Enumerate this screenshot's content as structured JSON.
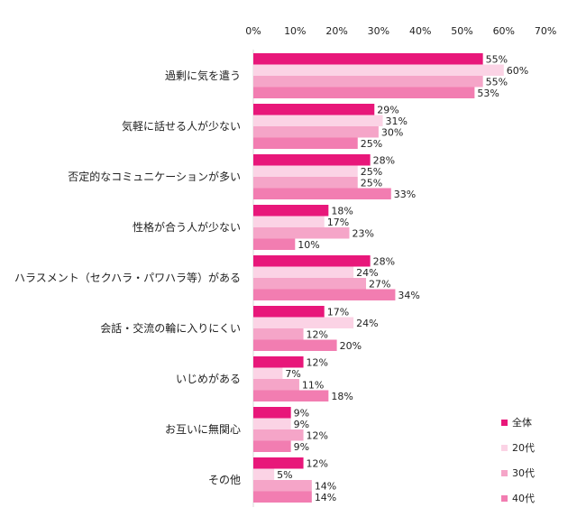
{
  "chart_data": {
    "type": "bar",
    "orientation": "horizontal",
    "xlim": [
      0,
      70
    ],
    "x_ticks": [
      "0%",
      "10%",
      "20%",
      "30%",
      "40%",
      "50%",
      "60%",
      "70%"
    ],
    "x_tick_values": [
      0,
      10,
      20,
      30,
      40,
      50,
      60,
      70
    ],
    "grid": false,
    "legend_placement": "bottom-right",
    "categories": [
      "過剰に気を遣う",
      "気軽に話せる人が少ない",
      "否定的なコミュニケーションが多い",
      "性格が合う人が少ない",
      "ハラスメント（セクハラ・パワハラ等）がある",
      "会話・交流の輪に入りにくい",
      "いじめがある",
      "お互いに無関心",
      "その他"
    ],
    "series": [
      {
        "name": "全体",
        "color": "#e8177a",
        "values": [
          55,
          29,
          28,
          18,
          28,
          17,
          12,
          9,
          12
        ]
      },
      {
        "name": "20代",
        "color": "#fbd3e5",
        "values": [
          60,
          31,
          25,
          17,
          24,
          24,
          7,
          9,
          5
        ]
      },
      {
        "name": "30代",
        "color": "#f5a5c8",
        "values": [
          55,
          30,
          25,
          23,
          27,
          12,
          11,
          12,
          14
        ]
      },
      {
        "name": "40代",
        "color": "#f27db1",
        "values": [
          53,
          25,
          33,
          10,
          34,
          20,
          18,
          9,
          14
        ]
      }
    ],
    "value_suffix": "%"
  }
}
